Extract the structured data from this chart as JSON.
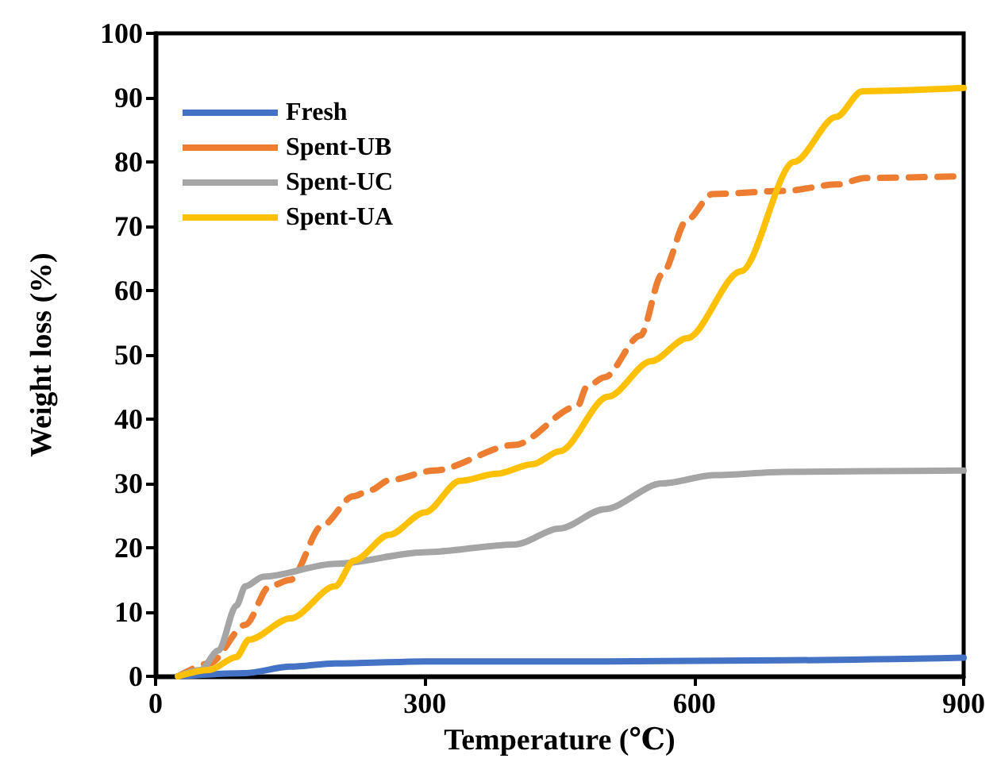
{
  "chart_data": {
    "type": "line",
    "xlabel": "Temperature (℃)",
    "ylabel": "Weight loss (%)",
    "xlim": [
      0,
      900
    ],
    "xticks": [
      0,
      300,
      600,
      900
    ],
    "ylim": [
      0,
      100
    ],
    "yticks": [
      0,
      10,
      20,
      30,
      40,
      50,
      60,
      70,
      80,
      90,
      100
    ],
    "grid": false,
    "legend": "top left",
    "marker": "none",
    "series": [
      {
        "name": "Fresh",
        "color": "#4472c4",
        "line_style": "solid",
        "x": [
          25,
          100,
          150,
          200,
          300,
          500,
          700,
          900
        ],
        "values": [
          0,
          0.5,
          1.5,
          2,
          2.3,
          2.3,
          2.5,
          2.9
        ]
      },
      {
        "name": "Spent-UB",
        "color": "#ed7d31",
        "line_style": "dashed",
        "x": [
          25,
          60,
          100,
          127,
          150,
          186,
          220,
          240,
          260,
          310,
          400,
          470,
          480,
          500,
          540,
          564,
          592,
          620,
          700,
          760,
          790,
          900
        ],
        "values": [
          0,
          2,
          8,
          14,
          15,
          23.5,
          28,
          29,
          30.5,
          32,
          36,
          42,
          45,
          46.5,
          53,
          62.5,
          71,
          75,
          75.5,
          76.5,
          77.5,
          77.8
        ]
      },
      {
        "name": "Spent-UC",
        "color": "#a5a5a5",
        "line_style": "solid",
        "x": [
          25,
          50,
          70,
          90,
          100,
          120,
          200,
          300,
          400,
          450,
          500,
          564,
          623,
          700,
          800,
          900
        ],
        "values": [
          0,
          1,
          4,
          11,
          14,
          15.5,
          17.5,
          19.3,
          20.5,
          23,
          26,
          30,
          31.3,
          31.8,
          31.9,
          32
        ]
      },
      {
        "name": "Spent-UA",
        "color": "#ffc000",
        "line_style": "solid",
        "x": [
          25,
          60,
          90,
          104,
          150,
          200,
          221,
          260,
          300,
          339,
          380,
          420,
          450,
          504,
          552,
          592,
          652,
          711,
          758,
          787,
          900
        ],
        "values": [
          0,
          1,
          3,
          5.7,
          9,
          14,
          18,
          22,
          25.5,
          30.4,
          31.5,
          33,
          35,
          43.5,
          49,
          52.6,
          63,
          80,
          87,
          91,
          91.5
        ]
      }
    ]
  }
}
